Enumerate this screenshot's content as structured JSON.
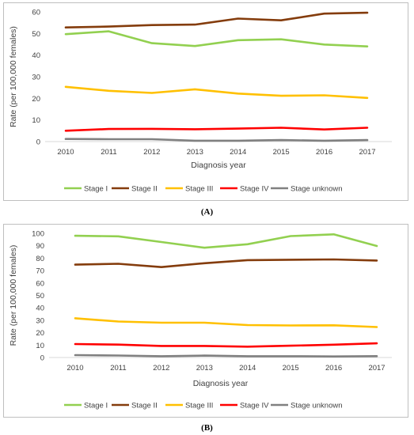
{
  "chart_data": [
    {
      "type": "line",
      "x": [
        2010,
        2011,
        2012,
        2013,
        2014,
        2015,
        2016,
        2017
      ],
      "xlabel": "Diagnosis year",
      "ylabel": "Rate (per 100,000 females)",
      "ylim": [
        0,
        60
      ],
      "yticks": [
        0,
        10,
        20,
        30,
        40,
        50,
        60
      ],
      "grid": false,
      "legend_position": "bottom",
      "series": [
        {
          "name": "Stage I",
          "color": "#92d050",
          "values": [
            49.7,
            51.0,
            45.5,
            44.2,
            46.9,
            47.3,
            44.9,
            44.0
          ]
        },
        {
          "name": "Stage II",
          "color": "#843c0c",
          "values": [
            52.8,
            53.2,
            53.9,
            54.1,
            56.9,
            56.1,
            59.2,
            59.6
          ]
        },
        {
          "name": "Stage III",
          "color": "#ffc000",
          "values": [
            25.3,
            23.5,
            22.5,
            24.2,
            22.2,
            21.2,
            21.4,
            20.2
          ]
        },
        {
          "name": "Stage IV",
          "color": "#ff0000",
          "values": [
            5.0,
            5.8,
            5.9,
            5.7,
            6.0,
            6.4,
            5.6,
            6.4
          ]
        },
        {
          "name": "Stage unknown",
          "color": "#808080",
          "values": [
            1.2,
            1.1,
            1.1,
            0.4,
            0.4,
            0.7,
            0.4,
            0.7
          ]
        }
      ],
      "caption": "(A)"
    },
    {
      "type": "line",
      "x": [
        2010,
        2011,
        2012,
        2013,
        2014,
        2015,
        2016,
        2017
      ],
      "xlabel": "Diagnosis year",
      "ylabel": "Rate (per 100,000 females)",
      "ylim": [
        0,
        100
      ],
      "yticks": [
        0,
        10,
        20,
        30,
        40,
        50,
        60,
        70,
        80,
        90,
        100
      ],
      "grid": false,
      "legend_position": "bottom",
      "series": [
        {
          "name": "Stage I",
          "color": "#92d050",
          "values": [
            98.0,
            97.6,
            93.0,
            88.4,
            91.2,
            97.8,
            99.2,
            89.8
          ]
        },
        {
          "name": "Stage II",
          "color": "#843c0c",
          "values": [
            74.8,
            75.5,
            72.8,
            75.9,
            78.4,
            78.7,
            79.0,
            78.1
          ]
        },
        {
          "name": "Stage III",
          "color": "#ffc000",
          "values": [
            31.6,
            29.0,
            28.0,
            28.0,
            26.1,
            25.8,
            25.9,
            24.5
          ]
        },
        {
          "name": "Stage IV",
          "color": "#ff0000",
          "values": [
            10.8,
            10.4,
            9.3,
            9.3,
            8.7,
            9.5,
            10.3,
            11.4
          ]
        },
        {
          "name": "Stage unknown",
          "color": "#808080",
          "values": [
            1.9,
            1.6,
            1.0,
            1.5,
            1.0,
            1.0,
            0.8,
            1.1
          ]
        }
      ],
      "caption": "(B)"
    }
  ]
}
